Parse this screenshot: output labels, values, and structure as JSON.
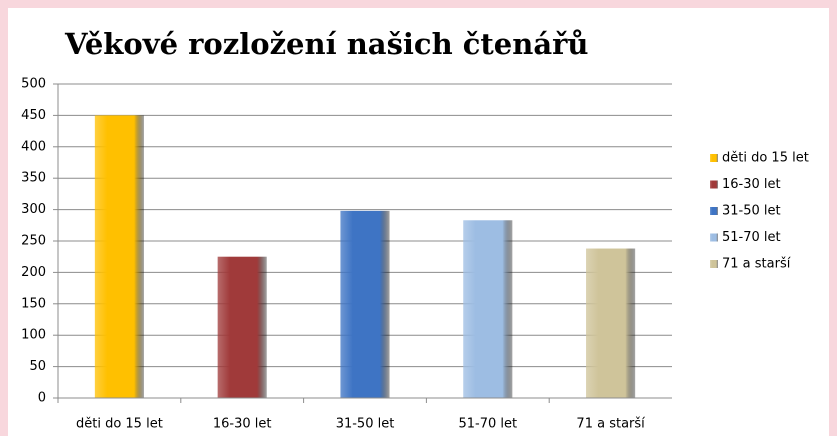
{
  "chart_data": {
    "type": "bar",
    "title": "Věkové rozložení našich čtenářů",
    "categories": [
      "děti do 15 let",
      "16-30 let",
      "31-50 let",
      "51-70 let",
      "71 a starší"
    ],
    "values": [
      450,
      225,
      298,
      283,
      238
    ],
    "colors": [
      "#ffc000",
      "#a03a3a",
      "#3e74c4",
      "#9dbde3",
      "#cfc49a"
    ],
    "ylim": [
      0,
      500
    ],
    "yticks": [
      0,
      50,
      100,
      150,
      200,
      250,
      300,
      350,
      400,
      450,
      500
    ],
    "grid": true,
    "legend": "right"
  }
}
